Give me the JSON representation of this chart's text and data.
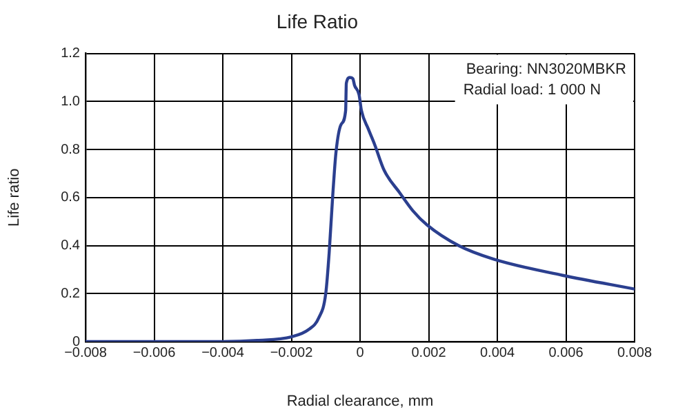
{
  "chart_data": {
    "type": "line",
    "title": "Life Ratio",
    "xlabel": "Radial clearance, mm",
    "ylabel": "Life ratio",
    "annotations": [
      "Bearing: NN3020MBKR",
      "Radial load: 1 000 N"
    ],
    "x": [
      -0.008,
      -0.006,
      -0.004,
      -0.003,
      -0.002,
      -0.0015,
      -0.0012,
      -0.001,
      -0.0009,
      -0.0008,
      -0.0007,
      -0.00055,
      -0.00042,
      -0.0004,
      -0.0003,
      -0.00021,
      -0.00016,
      -3e-05,
      4e-05,
      0.00024,
      0.00043,
      0.0007,
      0.00116,
      0.00155,
      0.00195,
      0.00287,
      0.0039,
      0.0059,
      0.008
    ],
    "series": [
      {
        "color": "#2b3f8f",
        "values": [
          0,
          0,
          0,
          0.005,
          0.02,
          0.05,
          0.1,
          0.2,
          0.37,
          0.6,
          0.79,
          0.905,
          0.962,
          1.076,
          1.1,
          1.095,
          1.067,
          1.029,
          0.962,
          0.886,
          0.819,
          0.714,
          0.619,
          0.543,
          0.486,
          0.4,
          0.343,
          0.276,
          0.219
        ]
      }
    ],
    "xlim": [
      -0.008,
      0.008
    ],
    "xticks": [
      {
        "value": -0.008,
        "label": "−0.008"
      },
      {
        "value": -0.006,
        "label": "−0.006"
      },
      {
        "value": -0.004,
        "label": "−0.004"
      },
      {
        "value": -0.002,
        "label": "−0.002"
      },
      0,
      0.002,
      0.004,
      0.006,
      0.008
    ],
    "ylim": [
      0,
      1.2
    ],
    "yticks": [
      0,
      {
        "value": 0.2,
        "label": "0.2"
      },
      {
        "value": 0.4,
        "label": "0.4"
      },
      {
        "value": 0.6,
        "label": "0.6"
      },
      {
        "value": 0.8,
        "label": "0.8"
      },
      {
        "value": 1,
        "label": "1.0"
      },
      {
        "value": 1.2,
        "label": "1.2"
      }
    ],
    "grid": true,
    "legend": false,
    "marker": "none",
    "line_style": "solid"
  }
}
